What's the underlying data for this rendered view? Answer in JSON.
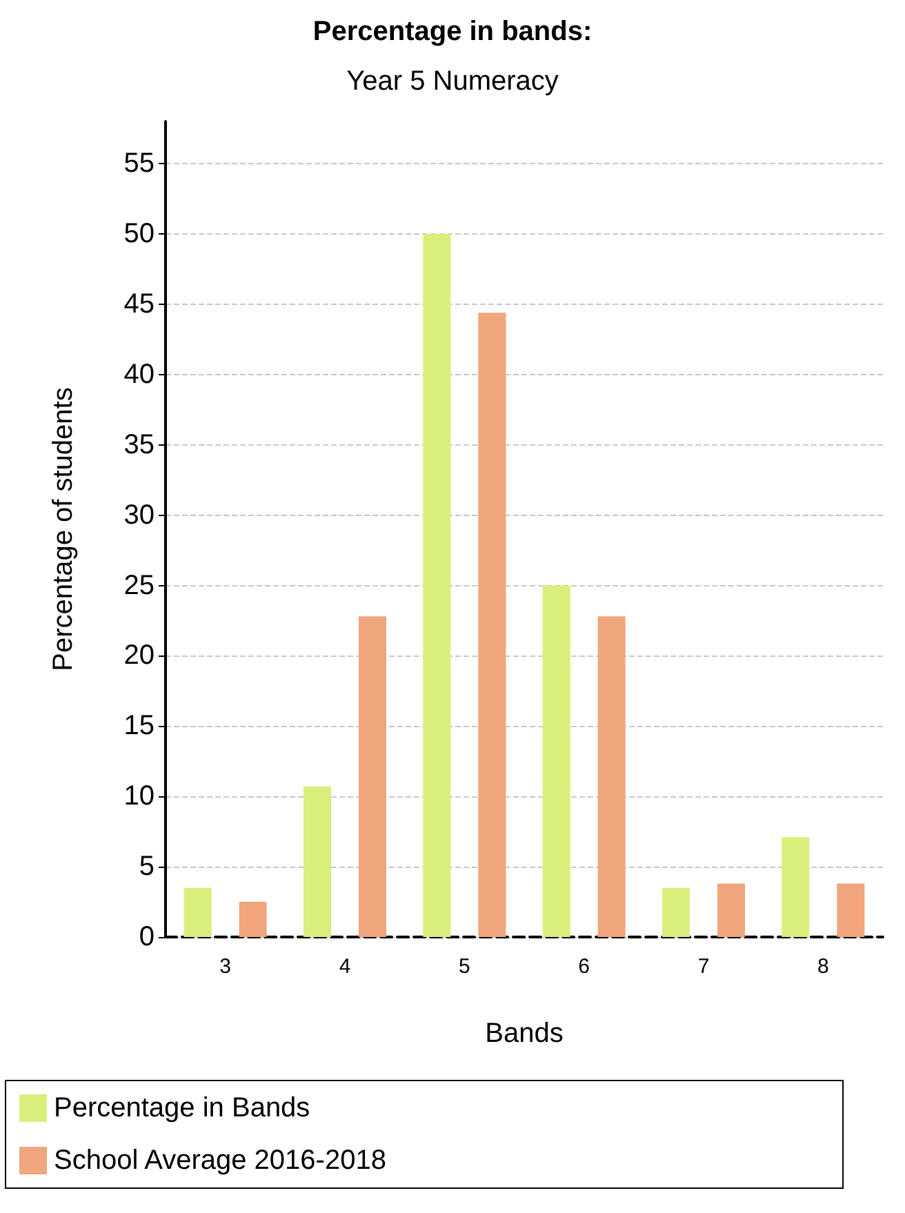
{
  "chart_data": {
    "type": "bar",
    "title": "Percentage in bands:",
    "subtitle": "Year 5 Numeracy",
    "xlabel": "Bands",
    "ylabel": "Percentage of students",
    "categories": [
      "3",
      "4",
      "5",
      "6",
      "7",
      "8"
    ],
    "series": [
      {
        "name": "Percentage in Bands",
        "color": "#d9ef7b",
        "values": [
          3.5,
          10.7,
          50,
          25,
          3.5,
          7.1
        ]
      },
      {
        "name": "School Average 2016-2018",
        "color": "#f0a57c",
        "values": [
          2.5,
          22.8,
          44.4,
          22.8,
          3.8,
          3.8
        ]
      }
    ],
    "ylim": [
      0,
      58
    ],
    "yticks": [
      0,
      5,
      10,
      15,
      20,
      25,
      30,
      35,
      40,
      45,
      50,
      55
    ],
    "grid": "y",
    "legend": "bottom"
  }
}
